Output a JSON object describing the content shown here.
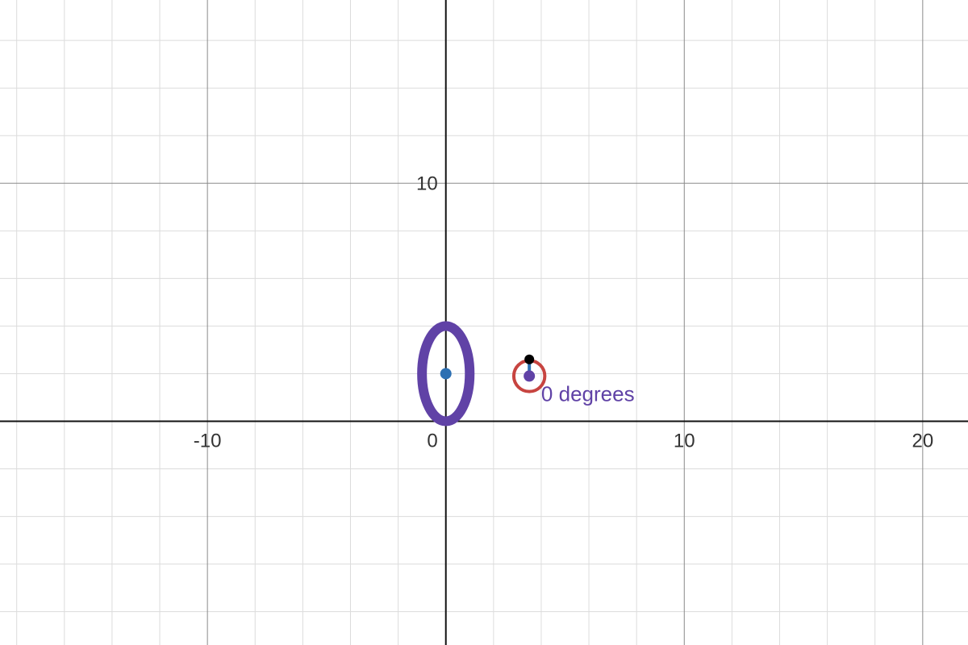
{
  "chart_data": {
    "type": "scatter",
    "x_range": [
      -18.7,
      21.9
    ],
    "y_range": [
      -9.4,
      17.7
    ],
    "grid": true,
    "minor_grid_step": 2,
    "major_grid_step": 10,
    "x_ticks": [
      {
        "value": -10,
        "label": "-10"
      },
      {
        "value": 0,
        "label": "0"
      },
      {
        "value": 10,
        "label": "10"
      },
      {
        "value": 20,
        "label": "20"
      }
    ],
    "y_ticks": [
      {
        "value": 10,
        "label": "10"
      }
    ],
    "ellipse": {
      "cx": 0,
      "cy": 2,
      "rx": 1,
      "ry": 2,
      "color": "#6042a6"
    },
    "center_point": {
      "x": 0,
      "y": 2,
      "color": "#2d70b3"
    },
    "circle": {
      "cx": 3.5,
      "cy": 1.9,
      "r": 0.65,
      "color": "#c74440"
    },
    "circle_center_point": {
      "x": 3.5,
      "y": 1.9,
      "color": "#6042a6"
    },
    "pointer": {
      "x1": 3.5,
      "y1": 1.9,
      "x2": 3.5,
      "y2": 2.6,
      "color": "#2d70b3",
      "tip_color": "#000000"
    },
    "annotation": {
      "text": "0 degrees",
      "x": 4.0,
      "y": 0.85,
      "color": "#6042a6"
    }
  }
}
